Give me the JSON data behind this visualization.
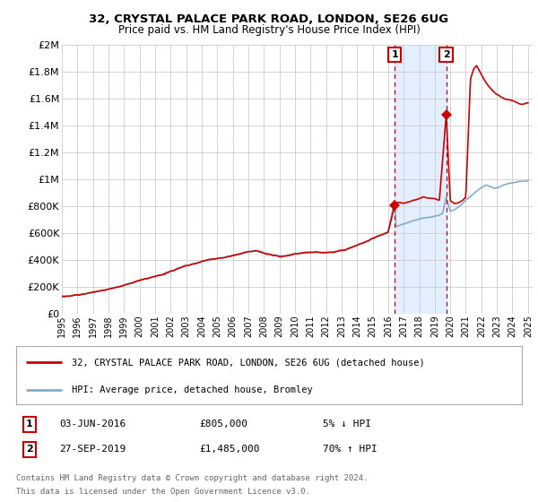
{
  "title1": "32, CRYSTAL PALACE PARK ROAD, LONDON, SE26 6UG",
  "title2": "Price paid vs. HM Land Registry's House Price Index (HPI)",
  "legend_line1": "32, CRYSTAL PALACE PARK ROAD, LONDON, SE26 6UG (detached house)",
  "legend_line2": "HPI: Average price, detached house, Bromley",
  "footnote1": "Contains HM Land Registry data © Crown copyright and database right 2024.",
  "footnote2": "This data is licensed under the Open Government Licence v3.0.",
  "sale1_date": "03-JUN-2016",
  "sale1_price": "£805,000",
  "sale1_hpi": "5% ↓ HPI",
  "sale1_year": 2016.42,
  "sale1_value": 805000,
  "sale2_date": "27-SEP-2019",
  "sale2_price": "£1,485,000",
  "sale2_hpi": "70% ↑ HPI",
  "sale2_year": 2019.74,
  "sale2_value": 1485000,
  "xlim": [
    1995,
    2025.3
  ],
  "ylim": [
    0,
    2000000
  ],
  "ytick_vals": [
    0,
    200000,
    400000,
    600000,
    800000,
    1000000,
    1200000,
    1400000,
    1600000,
    1800000,
    2000000
  ],
  "ytick_labels": [
    "£0",
    "£200K",
    "£400K",
    "£600K",
    "£800K",
    "£1M",
    "£1.2M",
    "£1.4M",
    "£1.6M",
    "£1.8M",
    "£2M"
  ],
  "xtick_vals": [
    1995,
    1996,
    1997,
    1998,
    1999,
    2000,
    2001,
    2002,
    2003,
    2004,
    2005,
    2006,
    2007,
    2008,
    2009,
    2010,
    2011,
    2012,
    2013,
    2014,
    2015,
    2016,
    2017,
    2018,
    2019,
    2020,
    2021,
    2022,
    2023,
    2024,
    2025
  ],
  "red_color": "#cc0000",
  "blue_color": "#88aacc",
  "grid_color": "#cccccc",
  "bg_color": "#ffffff",
  "sale_box_color": "#cc0000",
  "shade_color": "#cce0ff"
}
